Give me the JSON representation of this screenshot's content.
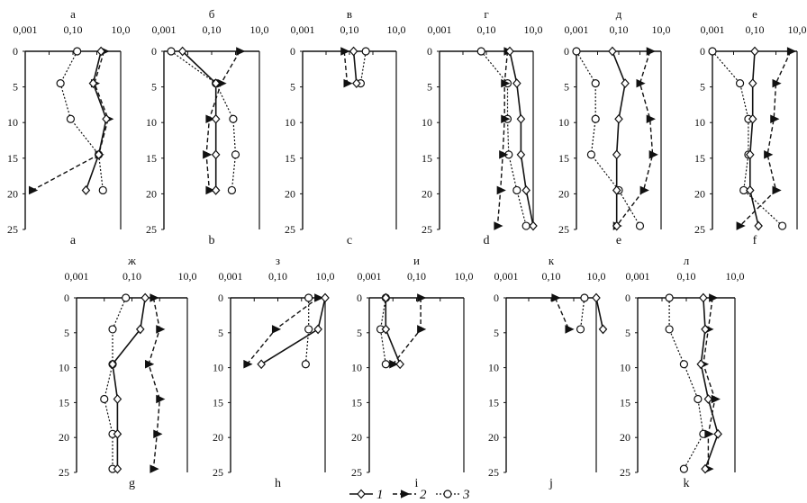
{
  "chart_data": {
    "type": "line",
    "x_axis": {
      "scale": "log",
      "position": "top",
      "range": [
        0.001,
        10.0
      ]
    },
    "y_axis": {
      "inverted": true,
      "range": [
        0,
        25
      ],
      "ticks": [
        "0",
        "5",
        "10",
        "15",
        "20",
        "25"
      ]
    },
    "grid": false,
    "legend": {
      "position": "bottom-center",
      "items": [
        {
          "label": "1",
          "marker": "diamond-open",
          "line": "solid"
        },
        {
          "label": "2",
          "marker": "triangle-filled",
          "line": "dashed"
        },
        {
          "label": "3",
          "marker": "circle-open",
          "line": "dotted"
        }
      ]
    },
    "panels": [
      {
        "top_label": "а",
        "bottom_label": "a",
        "x_ticks": [
          "0,001",
          "0,10",
          "10,0"
        ],
        "series": [
          {
            "name": "1",
            "points": [
              [
                1.5,
                0
              ],
              [
                0.7,
                4.5
              ],
              [
                2.5,
                9.5
              ],
              [
                1.2,
                14.5
              ],
              [
                0.35,
                19.5
              ]
            ]
          },
          {
            "name": "2",
            "points": [
              [
                2.0,
                0
              ],
              [
                0.8,
                4.5
              ],
              [
                3.0,
                9.5
              ],
              [
                1.2,
                14.5
              ],
              [
                0.002,
                19.5
              ]
            ]
          },
          {
            "name": "3",
            "points": [
              [
                0.15,
                0
              ],
              [
                0.03,
                4.5
              ],
              [
                0.08,
                9.5
              ],
              [
                1.2,
                14.5
              ],
              [
                1.8,
                19.5
              ]
            ]
          }
        ]
      },
      {
        "top_label": "б",
        "bottom_label": "b",
        "x_ticks": [
          "0,001",
          "0,10",
          "10,0"
        ],
        "series": [
          {
            "name": "1",
            "points": [
              [
                0.006,
                0
              ],
              [
                0.15,
                4.5
              ],
              [
                0.15,
                9.5
              ],
              [
                0.15,
                14.5
              ],
              [
                0.15,
                19.5
              ]
            ]
          },
          {
            "name": "2",
            "points": [
              [
                1.5,
                0
              ],
              [
                0.25,
                4.5
              ],
              [
                0.08,
                9.5
              ],
              [
                0.06,
                14.5
              ],
              [
                0.08,
                19.5
              ]
            ]
          },
          {
            "name": "3",
            "points": [
              [
                0.002,
                0
              ],
              [
                0.15,
                4.5
              ],
              [
                0.8,
                9.5
              ],
              [
                1.0,
                14.5
              ],
              [
                0.7,
                19.5
              ]
            ]
          }
        ]
      },
      {
        "top_label": "в",
        "bottom_label": "c",
        "x_ticks": [
          "0,001",
          "0,10",
          "10,0"
        ],
        "series": [
          {
            "name": "1",
            "points": [
              [
                0.15,
                0
              ],
              [
                0.2,
                4.5
              ]
            ]
          },
          {
            "name": "2",
            "points": [
              [
                0.06,
                0
              ],
              [
                0.08,
                4.5
              ]
            ]
          },
          {
            "name": "3",
            "points": [
              [
                0.5,
                0
              ],
              [
                0.3,
                4.5
              ]
            ]
          }
        ]
      },
      {
        "top_label": "г",
        "bottom_label": "d",
        "x_ticks": [
          "0,001",
          "0,10",
          "10,0"
        ],
        "series": [
          {
            "name": "1",
            "points": [
              [
                1.0,
                0
              ],
              [
                2.0,
                4.5
              ],
              [
                3.0,
                9.5
              ],
              [
                3.0,
                14.5
              ],
              [
                5.0,
                19.5
              ],
              [
                10.0,
                24.5
              ]
            ]
          },
          {
            "name": "2",
            "points": [
              [
                0.8,
                0
              ],
              [
                0.6,
                4.5
              ],
              [
                0.6,
                9.5
              ],
              [
                0.5,
                14.5
              ],
              [
                0.4,
                19.5
              ],
              [
                0.3,
                24.5
              ]
            ]
          },
          {
            "name": "3",
            "points": [
              [
                0.06,
                0
              ],
              [
                0.8,
                4.5
              ],
              [
                0.8,
                9.5
              ],
              [
                0.9,
                14.5
              ],
              [
                2.0,
                19.5
              ],
              [
                5.0,
                24.5
              ]
            ]
          }
        ]
      },
      {
        "top_label": "д",
        "bottom_label": "e",
        "x_ticks": [
          "0,001",
          "0,10",
          "10,0"
        ],
        "series": [
          {
            "name": "1",
            "points": [
              [
                0.05,
                0
              ],
              [
                0.2,
                4.5
              ],
              [
                0.1,
                9.5
              ],
              [
                0.08,
                14.5
              ],
              [
                0.08,
                19.5
              ],
              [
                0.08,
                24.5
              ]
            ]
          },
          {
            "name": "2",
            "points": [
              [
                3.0,
                0
              ],
              [
                1.0,
                4.5
              ],
              [
                3.0,
                9.5
              ],
              [
                4.0,
                14.5
              ],
              [
                1.5,
                19.5
              ],
              [
                0.08,
                24.5
              ]
            ]
          },
          {
            "name": "3",
            "points": [
              [
                0.001,
                0
              ],
              [
                0.008,
                4.5
              ],
              [
                0.008,
                9.5
              ],
              [
                0.005,
                14.5
              ],
              [
                0.1,
                19.5
              ],
              [
                1.0,
                24.5
              ]
            ]
          }
        ]
      },
      {
        "top_label": "е",
        "bottom_label": "f",
        "x_ticks": [
          "0,001",
          "0,10",
          "10,0"
        ],
        "series": [
          {
            "name": "1",
            "points": [
              [
                0.1,
                0
              ],
              [
                0.08,
                4.5
              ],
              [
                0.08,
                9.5
              ],
              [
                0.06,
                14.5
              ],
              [
                0.06,
                19.5
              ],
              [
                0.15,
                24.5
              ]
            ]
          },
          {
            "name": "2",
            "points": [
              [
                5.0,
                0
              ],
              [
                1.0,
                4.5
              ],
              [
                0.8,
                9.5
              ],
              [
                0.4,
                14.5
              ],
              [
                1.0,
                19.5
              ],
              [
                0.02,
                24.5
              ]
            ]
          },
          {
            "name": "3",
            "points": [
              [
                0.001,
                0
              ],
              [
                0.02,
                4.5
              ],
              [
                0.05,
                9.5
              ],
              [
                0.05,
                14.5
              ],
              [
                0.03,
                19.5
              ],
              [
                2.0,
                24.5
              ]
            ]
          }
        ]
      },
      {
        "top_label": "ж",
        "bottom_label": "g",
        "x_ticks": [
          "0,001",
          "0,10",
          "10,0"
        ],
        "series": [
          {
            "name": "1",
            "points": [
              [
                0.3,
                0
              ],
              [
                0.2,
                4.5
              ],
              [
                0.02,
                9.5
              ],
              [
                0.03,
                14.5
              ],
              [
                0.03,
                19.5
              ],
              [
                0.03,
                24.5
              ]
            ]
          },
          {
            "name": "2",
            "points": [
              [
                0.6,
                0
              ],
              [
                1.0,
                4.5
              ],
              [
                0.4,
                9.5
              ],
              [
                1.0,
                14.5
              ],
              [
                0.8,
                19.5
              ],
              [
                0.6,
                24.5
              ]
            ]
          },
          {
            "name": "3",
            "points": [
              [
                0.06,
                0
              ],
              [
                0.02,
                4.5
              ],
              [
                0.02,
                9.5
              ],
              [
                0.01,
                14.5
              ],
              [
                0.02,
                19.5
              ],
              [
                0.02,
                24.5
              ]
            ]
          }
        ]
      },
      {
        "top_label": "з",
        "bottom_label": "h",
        "x_ticks": [
          "0,001",
          "0,10",
          "10,0"
        ],
        "series": [
          {
            "name": "1",
            "points": [
              [
                10.0,
                0
              ],
              [
                5.0,
                4.5
              ],
              [
                0.02,
                9.5
              ]
            ]
          },
          {
            "name": "2",
            "points": [
              [
                5.0,
                0
              ],
              [
                0.08,
                4.5
              ],
              [
                0.005,
                9.5
              ]
            ]
          },
          {
            "name": "3",
            "points": [
              [
                2.0,
                0
              ],
              [
                2.0,
                4.5
              ],
              [
                1.5,
                9.5
              ]
            ]
          }
        ]
      },
      {
        "top_label": "и",
        "bottom_label": "i",
        "x_ticks": [
          "0,001",
          "0,10",
          "10,0"
        ],
        "series": [
          {
            "name": "1",
            "points": [
              [
                0.005,
                0
              ],
              [
                0.005,
                4.5
              ],
              [
                0.02,
                9.5
              ]
            ]
          },
          {
            "name": "2",
            "points": [
              [
                0.15,
                0
              ],
              [
                0.15,
                4.5
              ],
              [
                0.01,
                9.5
              ]
            ]
          },
          {
            "name": "3",
            "points": [
              [
                0.005,
                0
              ],
              [
                0.003,
                4.5
              ],
              [
                0.005,
                9.5
              ]
            ]
          }
        ]
      },
      {
        "top_label": "к",
        "bottom_label": "j",
        "x_ticks": [
          "0,001",
          "0,10",
          "10,0"
        ],
        "series": [
          {
            "name": "1",
            "points": [
              [
                10.0,
                0
              ],
              [
                20.0,
                4.5
              ]
            ]
          },
          {
            "name": "2",
            "points": [
              [
                0.15,
                0
              ],
              [
                0.6,
                4.5
              ]
            ]
          },
          {
            "name": "3",
            "points": [
              [
                3.0,
                0
              ],
              [
                2.0,
                4.5
              ]
            ]
          }
        ]
      },
      {
        "top_label": "л",
        "bottom_label": "k",
        "x_ticks": [
          "0,001",
          "0,10",
          "10,0"
        ],
        "series": [
          {
            "name": "1",
            "points": [
              [
                0.5,
                0
              ],
              [
                0.6,
                4.5
              ],
              [
                0.4,
                9.5
              ],
              [
                0.8,
                14.5
              ],
              [
                2.0,
                19.5
              ],
              [
                0.6,
                24.5
              ]
            ]
          },
          {
            "name": "2",
            "points": [
              [
                1.2,
                0
              ],
              [
                0.8,
                4.5
              ],
              [
                0.5,
                9.5
              ],
              [
                1.5,
                14.5
              ],
              [
                0.8,
                19.5
              ],
              [
                0.8,
                24.5
              ]
            ]
          },
          {
            "name": "3",
            "points": [
              [
                0.02,
                0
              ],
              [
                0.02,
                4.5
              ],
              [
                0.08,
                9.5
              ],
              [
                0.3,
                14.5
              ],
              [
                0.5,
                19.5
              ],
              [
                0.08,
                24.5
              ]
            ]
          }
        ]
      }
    ]
  }
}
